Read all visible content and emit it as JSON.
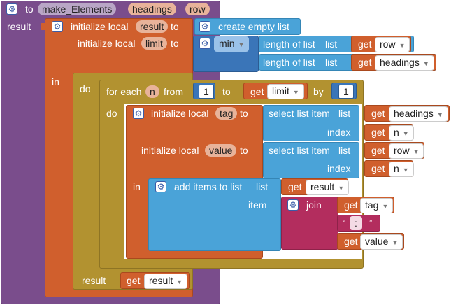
{
  "procedure": {
    "keyword": "to",
    "name": "make_Elements",
    "params": [
      "headings",
      "row"
    ],
    "result_label": "result"
  },
  "init_local_label": "initialize local",
  "to_label": "to",
  "in_label": "in",
  "do_label": "do",
  "get_label": "get",
  "local_result": {
    "name": "result",
    "value_label": "create empty list"
  },
  "local_limit": {
    "name": "limit",
    "op": "min",
    "length_label": "length of list",
    "list_label": "list",
    "arg1": "row",
    "arg2": "headings"
  },
  "foreach": {
    "label": "for each",
    "var": "n",
    "from_label": "from",
    "from_value": "1",
    "to_label": "to",
    "to_var": "limit",
    "by_label": "by",
    "by_value": "1"
  },
  "local_tag": {
    "name": "tag",
    "select_label": "select list item",
    "list_label": "list",
    "list_var": "headings",
    "index_label": "index",
    "index_var": "n"
  },
  "local_value": {
    "name": "value",
    "select_label": "select list item",
    "list_label": "list",
    "list_var": "row",
    "index_label": "index",
    "index_var": "n"
  },
  "add_items": {
    "label": "add items to list",
    "list_label": "list",
    "list_var": "result",
    "item_label": "item",
    "join_label": "join",
    "join_arg1": "tag",
    "join_text": ":",
    "join_arg3": "value"
  },
  "final_result": {
    "label": "result",
    "var": "result"
  },
  "colors": {
    "procedure": "#7a4d8c",
    "variables": "#d05f2d",
    "lists": "#4aa3d8",
    "math": "#3a75b8",
    "control": "#b29230",
    "text": "#b32d5e"
  },
  "icons": {
    "mutator": "gear-icon",
    "dropdown": "chevron-down-icon"
  }
}
